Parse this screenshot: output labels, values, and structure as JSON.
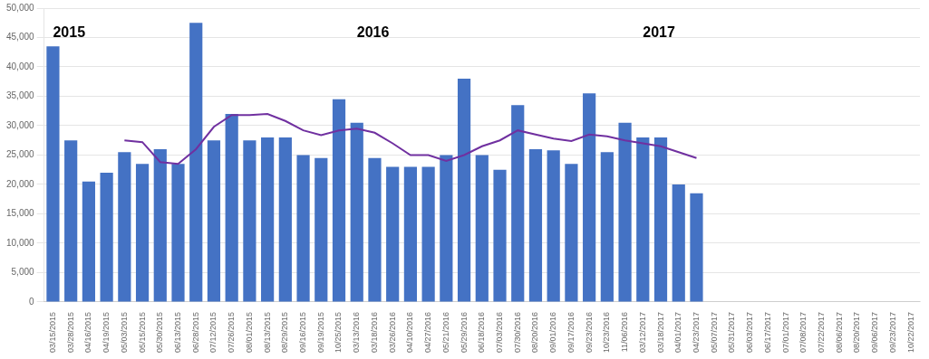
{
  "chart_data": {
    "type": "bar",
    "categories": [
      "03/15/2015",
      "03/28/2015",
      "04/16/2015",
      "04/19/2015",
      "05/03/2015",
      "05/15/2015",
      "05/30/2015",
      "06/13/2015",
      "06/28/2015",
      "07/12/2015",
      "07/26/2015",
      "08/01/2015",
      "08/13/2015",
      "08/29/2015",
      "09/16/2015",
      "09/19/2015",
      "10/25/2015",
      "03/13/2016",
      "03/18/2016",
      "03/26/2016",
      "04/10/2016",
      "04/27/2016",
      "05/21/2016",
      "05/29/2016",
      "06/18/2016",
      "07/03/2016",
      "07/30/2016",
      "08/20/2016",
      "09/01/2016",
      "09/17/2016",
      "09/23/2016",
      "10/23/2016",
      "11/06/2016",
      "03/12/2017",
      "03/18/2017",
      "04/01/2017",
      "04/23/2017",
      "05/07/2017",
      "05/31/2017",
      "06/03/2017",
      "06/17/2017",
      "07/01/2017",
      "07/08/2017",
      "07/22/2017",
      "08/06/2017",
      "08/20/2017",
      "09/06/2017",
      "09/23/2017",
      "10/22/2017"
    ],
    "series": [
      {
        "type": "bar",
        "color": "#4472C4",
        "values": [
          43500,
          27500,
          20500,
          22000,
          25500,
          23500,
          26000,
          23500,
          47500,
          27500,
          32000,
          27500,
          28000,
          28000,
          25000,
          24500,
          34500,
          30500,
          24500,
          23000,
          23000,
          23000,
          25000,
          38000,
          25000,
          22500,
          33500,
          26000,
          25800,
          23500,
          35500,
          25500,
          30500,
          28000,
          28000,
          20000,
          18500,
          null,
          null,
          null,
          null,
          null,
          null,
          null,
          null,
          null,
          null,
          null,
          null
        ]
      },
      {
        "type": "line",
        "color": "#7030A0",
        "values": [
          null,
          null,
          null,
          null,
          27500,
          27200,
          23800,
          23500,
          26000,
          29800,
          31800,
          31800,
          32000,
          30800,
          29200,
          28400,
          29200,
          29500,
          28800,
          27000,
          25000,
          25000,
          24000,
          25000,
          26500,
          27500,
          29200,
          28500,
          27800,
          27400,
          28500,
          28200,
          27500,
          27000,
          26500,
          25500,
          24500,
          null,
          null,
          null,
          null,
          null,
          null,
          null,
          null,
          null,
          null,
          null,
          null
        ]
      }
    ],
    "ylim": [
      0,
      50000
    ],
    "yticks": [
      0,
      {
        "value": 5000,
        "label": "5,000"
      },
      {
        "value": 10000,
        "label": "10,000"
      },
      {
        "value": 15000,
        "label": "15,000"
      },
      {
        "value": 20000,
        "label": "20,000"
      },
      {
        "value": 25000,
        "label": "25,000"
      },
      {
        "value": 30000,
        "label": "30,000"
      },
      {
        "value": 35000,
        "label": "35,000"
      },
      {
        "value": 40000,
        "label": "40,000"
      },
      {
        "value": 45000,
        "label": "45,000"
      },
      {
        "value": 50000,
        "label": "50,000"
      }
    ],
    "grid": true,
    "annotations": [
      {
        "text": "2015",
        "x": "03/15/2015",
        "y": 47000
      },
      {
        "text": "2016",
        "x": "03/13/2016",
        "y": 47000
      },
      {
        "text": "2017",
        "x": "03/12/2017",
        "y": 47000
      }
    ]
  }
}
